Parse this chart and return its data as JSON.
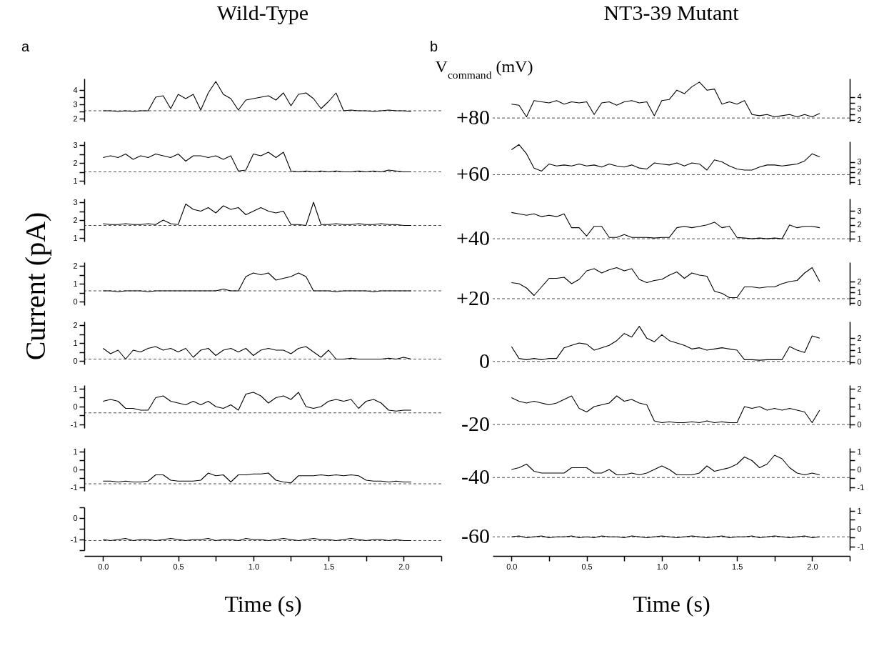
{
  "chart_data": [
    {
      "type": "line",
      "title": "Wild-Type",
      "annotations": [
        "a"
      ],
      "tick_labels": "y",
      "xlim": [
        -0.125,
        2.25
      ],
      "ylim": [
        1.8,
        4.8
      ],
      "yticks": [
        2,
        {
          "value": 2.5,
          "label": null
        },
        3,
        {
          "value": 3.5,
          "label": null
        },
        4
      ],
      "line_style": "solid",
      "ref_lines": [
        {
          "axis": "y",
          "value": 2.55,
          "color": "#000000",
          "line_style": "dashed"
        }
      ],
      "x": [
        0,
        0.05,
        0.1,
        0.15,
        0.2,
        0.25,
        0.3,
        0.35,
        0.4,
        0.45,
        0.5,
        0.55,
        0.6,
        0.65,
        0.7,
        0.75,
        0.8,
        0.85,
        0.9,
        0.95,
        1,
        1.05,
        1.1,
        1.15,
        1.2,
        1.25,
        1.3,
        1.35,
        1.4,
        1.45,
        1.5,
        1.55,
        1.6,
        1.65,
        1.7,
        1.75,
        1.8,
        1.85,
        1.9,
        1.95,
        2,
        2.05
      ],
      "series": [
        {
          "color": "#000000",
          "values": [
            2.55,
            2.55,
            2.5,
            2.55,
            2.5,
            2.55,
            2.55,
            3.5,
            3.6,
            2.7,
            3.7,
            3.4,
            3.7,
            2.6,
            3.8,
            4.6,
            3.7,
            3.4,
            2.6,
            3.3,
            3.4,
            3.5,
            3.6,
            3.3,
            3.8,
            2.9,
            3.7,
            3.8,
            3.4,
            2.7,
            3.2,
            3.8,
            2.55,
            2.6,
            2.55,
            2.55,
            2.5,
            2.55,
            2.6,
            2.55,
            2.55,
            2.5
          ]
        }
      ]
    },
    {
      "type": "line",
      "tick_labels": "y",
      "xlim": [
        -0.125,
        2.25
      ],
      "ylim": [
        0.8,
        3.2
      ],
      "yticks": [
        1,
        {
          "value": 1.5,
          "label": null
        },
        2,
        {
          "value": 2.5,
          "label": null
        },
        3
      ],
      "line_style": "solid",
      "ref_lines": [
        {
          "axis": "y",
          "value": 1.5,
          "color": "#000000",
          "line_style": "dashed"
        }
      ],
      "x": [
        0,
        0.05,
        0.1,
        0.15,
        0.2,
        0.25,
        0.3,
        0.35,
        0.4,
        0.45,
        0.5,
        0.55,
        0.6,
        0.65,
        0.7,
        0.75,
        0.8,
        0.85,
        0.9,
        0.95,
        1,
        1.05,
        1.1,
        1.15,
        1.2,
        1.25,
        1.3,
        1.35,
        1.4,
        1.45,
        1.5,
        1.55,
        1.6,
        1.65,
        1.7,
        1.75,
        1.8,
        1.85,
        1.9,
        1.95,
        2,
        2.05
      ],
      "series": [
        {
          "color": "#000000",
          "values": [
            2.3,
            2.4,
            2.3,
            2.5,
            2.2,
            2.4,
            2.3,
            2.5,
            2.4,
            2.3,
            2.5,
            2.1,
            2.4,
            2.4,
            2.3,
            2.4,
            2.2,
            2.4,
            1.55,
            1.6,
            2.5,
            2.4,
            2.6,
            2.3,
            2.6,
            1.55,
            1.5,
            1.55,
            1.5,
            1.55,
            1.5,
            1.55,
            1.5,
            1.5,
            1.55,
            1.5,
            1.55,
            1.5,
            1.6,
            1.55,
            1.5,
            1.5
          ]
        }
      ]
    },
    {
      "type": "line",
      "tick_labels": "y",
      "xlim": [
        -0.125,
        2.25
      ],
      "ylim": [
        0.8,
        3.2
      ],
      "yticks": [
        1,
        {
          "value": 1.5,
          "label": null
        },
        2,
        {
          "value": 2.5,
          "label": null
        },
        3
      ],
      "line_style": "solid",
      "ref_lines": [
        {
          "axis": "y",
          "value": 1.7,
          "color": "#000000",
          "line_style": "dashed"
        }
      ],
      "x": [
        0,
        0.05,
        0.1,
        0.15,
        0.2,
        0.25,
        0.3,
        0.35,
        0.4,
        0.45,
        0.5,
        0.55,
        0.6,
        0.65,
        0.7,
        0.75,
        0.8,
        0.85,
        0.9,
        0.95,
        1,
        1.05,
        1.1,
        1.15,
        1.2,
        1.25,
        1.3,
        1.35,
        1.4,
        1.45,
        1.5,
        1.55,
        1.6,
        1.65,
        1.7,
        1.75,
        1.8,
        1.85,
        1.9,
        1.95,
        2,
        2.05
      ],
      "series": [
        {
          "color": "#000000",
          "values": [
            1.8,
            1.75,
            1.75,
            1.8,
            1.75,
            1.75,
            1.8,
            1.75,
            2.0,
            1.8,
            1.75,
            2.9,
            2.6,
            2.5,
            2.7,
            2.4,
            2.8,
            2.6,
            2.7,
            2.3,
            2.5,
            2.7,
            2.5,
            2.4,
            2.5,
            1.75,
            1.75,
            1.7,
            3.0,
            1.75,
            1.75,
            1.8,
            1.75,
            1.75,
            1.8,
            1.75,
            1.75,
            1.8,
            1.75,
            1.75,
            1.7,
            1.7
          ]
        }
      ]
    },
    {
      "type": "line",
      "ylabel": "Current (pA)",
      "tick_labels": "y",
      "xlim": [
        -0.125,
        2.25
      ],
      "ylim": [
        -0.2,
        2.2
      ],
      "yticks": [
        0,
        {
          "value": 0.5,
          "label": null
        },
        1,
        {
          "value": 1.5,
          "label": null
        },
        2
      ],
      "line_style": "solid",
      "ref_lines": [
        {
          "axis": "y",
          "value": 0.6,
          "color": "#000000",
          "line_style": "dashed"
        }
      ],
      "x": [
        0,
        0.05,
        0.1,
        0.15,
        0.2,
        0.25,
        0.3,
        0.35,
        0.4,
        0.45,
        0.5,
        0.55,
        0.6,
        0.65,
        0.7,
        0.75,
        0.8,
        0.85,
        0.9,
        0.95,
        1,
        1.05,
        1.1,
        1.15,
        1.2,
        1.25,
        1.3,
        1.35,
        1.4,
        1.45,
        1.5,
        1.55,
        1.6,
        1.65,
        1.7,
        1.75,
        1.8,
        1.85,
        1.9,
        1.95,
        2,
        2.05
      ],
      "series": [
        {
          "color": "#000000",
          "values": [
            0.6,
            0.6,
            0.55,
            0.6,
            0.6,
            0.6,
            0.55,
            0.6,
            0.6,
            0.6,
            0.6,
            0.6,
            0.6,
            0.6,
            0.6,
            0.6,
            0.7,
            0.6,
            0.6,
            1.4,
            1.6,
            1.5,
            1.6,
            1.2,
            1.3,
            1.4,
            1.6,
            1.4,
            0.6,
            0.6,
            0.6,
            0.55,
            0.6,
            0.6,
            0.6,
            0.6,
            0.55,
            0.6,
            0.6,
            0.6,
            0.6,
            0.6
          ]
        }
      ]
    },
    {
      "type": "line",
      "tick_labels": "y",
      "xlim": [
        -0.125,
        2.25
      ],
      "ylim": [
        -0.2,
        2.2
      ],
      "yticks": [
        0,
        {
          "value": 0.5,
          "label": null
        },
        1,
        {
          "value": 1.5,
          "label": null
        },
        2
      ],
      "line_style": "solid",
      "ref_lines": [
        {
          "axis": "y",
          "value": 0.1,
          "color": "#000000",
          "line_style": "dashed"
        }
      ],
      "x": [
        0,
        0.05,
        0.1,
        0.15,
        0.2,
        0.25,
        0.3,
        0.35,
        0.4,
        0.45,
        0.5,
        0.55,
        0.6,
        0.65,
        0.7,
        0.75,
        0.8,
        0.85,
        0.9,
        0.95,
        1,
        1.05,
        1.1,
        1.15,
        1.2,
        1.25,
        1.3,
        1.35,
        1.4,
        1.45,
        1.5,
        1.55,
        1.6,
        1.65,
        1.7,
        1.75,
        1.8,
        1.85,
        1.9,
        1.95,
        2,
        2.05
      ],
      "series": [
        {
          "color": "#000000",
          "values": [
            0.7,
            0.4,
            0.6,
            0.1,
            0.6,
            0.5,
            0.7,
            0.8,
            0.6,
            0.7,
            0.5,
            0.7,
            0.2,
            0.6,
            0.7,
            0.3,
            0.6,
            0.7,
            0.5,
            0.7,
            0.3,
            0.6,
            0.7,
            0.6,
            0.6,
            0.4,
            0.7,
            0.8,
            0.5,
            0.2,
            0.6,
            0.1,
            0.1,
            0.15,
            0.1,
            0.1,
            0.1,
            0.1,
            0.15,
            0.1,
            0.2,
            0.1
          ]
        }
      ]
    },
    {
      "type": "line",
      "tick_labels": "y",
      "xlim": [
        -0.125,
        2.25
      ],
      "ylim": [
        -1.2,
        1.2
      ],
      "yticks": [
        -1,
        {
          "value": -0.5,
          "label": null
        },
        0,
        {
          "value": 0.5,
          "label": null
        },
        1
      ],
      "line_style": "solid",
      "ref_lines": [
        {
          "axis": "y",
          "value": -0.35,
          "color": "#000000",
          "line_style": "dashed"
        }
      ],
      "x": [
        0,
        0.05,
        0.1,
        0.15,
        0.2,
        0.25,
        0.3,
        0.35,
        0.4,
        0.45,
        0.5,
        0.55,
        0.6,
        0.65,
        0.7,
        0.75,
        0.8,
        0.85,
        0.9,
        0.95,
        1,
        1.05,
        1.1,
        1.15,
        1.2,
        1.25,
        1.3,
        1.35,
        1.4,
        1.45,
        1.5,
        1.55,
        1.6,
        1.65,
        1.7,
        1.75,
        1.8,
        1.85,
        1.9,
        1.95,
        2,
        2.05
      ],
      "series": [
        {
          "color": "#000000",
          "values": [
            0.3,
            0.4,
            0.3,
            -0.1,
            -0.1,
            -0.2,
            -0.2,
            0.5,
            0.6,
            0.3,
            0.2,
            0.1,
            0.3,
            0.1,
            0.3,
            0,
            -0.1,
            0.1,
            -0.2,
            0.7,
            0.8,
            0.6,
            0.2,
            0.5,
            0.6,
            0.4,
            0.8,
            0,
            -0.1,
            0,
            0.3,
            0.4,
            0.3,
            0.4,
            -0.1,
            0.3,
            0.4,
            0.2,
            -0.2,
            -0.25,
            -0.2,
            -0.2
          ]
        }
      ]
    },
    {
      "type": "line",
      "tick_labels": "y",
      "xlim": [
        -0.125,
        2.25
      ],
      "ylim": [
        -1.2,
        1.2
      ],
      "yticks": [
        -1,
        {
          "value": -0.5,
          "label": null
        },
        0,
        {
          "value": 0.5,
          "label": null
        },
        1
      ],
      "line_style": "solid",
      "ref_lines": [
        {
          "axis": "y",
          "value": -0.8,
          "color": "#000000",
          "line_style": "dashed"
        }
      ],
      "x": [
        0,
        0.05,
        0.1,
        0.15,
        0.2,
        0.25,
        0.3,
        0.35,
        0.4,
        0.45,
        0.5,
        0.55,
        0.6,
        0.65,
        0.7,
        0.75,
        0.8,
        0.85,
        0.9,
        0.95,
        1,
        1.05,
        1.1,
        1.15,
        1.2,
        1.25,
        1.3,
        1.35,
        1.4,
        1.45,
        1.5,
        1.55,
        1.6,
        1.65,
        1.7,
        1.75,
        1.8,
        1.85,
        1.9,
        1.95,
        2,
        2.05
      ],
      "series": [
        {
          "color": "#000000",
          "values": [
            -0.65,
            -0.65,
            -0.7,
            -0.65,
            -0.7,
            -0.7,
            -0.65,
            -0.3,
            -0.3,
            -0.6,
            -0.65,
            -0.65,
            -0.65,
            -0.6,
            -0.2,
            -0.35,
            -0.3,
            -0.7,
            -0.3,
            -0.3,
            -0.25,
            -0.25,
            -0.2,
            -0.6,
            -0.7,
            -0.75,
            -0.35,
            -0.35,
            -0.35,
            -0.3,
            -0.35,
            -0.3,
            -0.35,
            -0.3,
            -0.35,
            -0.6,
            -0.65,
            -0.65,
            -0.7,
            -0.65,
            -0.7,
            -0.7
          ]
        }
      ]
    },
    {
      "type": "line",
      "xlabel": "Time (s)",
      "xlim": [
        -0.125,
        2.25
      ],
      "xticks": [
        {
          "value": 0,
          "label": "0.0"
        },
        {
          "value": 0.25,
          "label": null
        },
        {
          "value": 0.5,
          "label": "0.5"
        },
        {
          "value": 0.75,
          "label": null
        },
        {
          "value": 1,
          "label": "1.0"
        },
        {
          "value": 1.25,
          "label": null
        },
        {
          "value": 1.5,
          "label": "1.5"
        },
        {
          "value": 1.75,
          "label": null
        },
        {
          "value": 2,
          "label": "2.0"
        },
        {
          "value": 2.25,
          "label": null
        }
      ],
      "ylim": [
        -1.5,
        0.5
      ],
      "yticks": [
        {
          "value": -1.5,
          "label": null
        },
        -1,
        {
          "value": -0.5,
          "label": null
        },
        0,
        {
          "value": 0.5,
          "label": null
        }
      ],
      "line_style": "solid",
      "ref_lines": [
        {
          "axis": "y",
          "value": -1.05,
          "color": "#000000",
          "line_style": "dashed"
        }
      ],
      "x": [
        0,
        0.05,
        0.1,
        0.15,
        0.2,
        0.25,
        0.3,
        0.35,
        0.4,
        0.45,
        0.5,
        0.55,
        0.6,
        0.65,
        0.7,
        0.75,
        0.8,
        0.85,
        0.9,
        0.95,
        1,
        1.05,
        1.1,
        1.15,
        1.2,
        1.25,
        1.3,
        1.35,
        1.4,
        1.45,
        1.5,
        1.55,
        1.6,
        1.65,
        1.7,
        1.75,
        1.8,
        1.85,
        1.9,
        1.95,
        2,
        2.05
      ],
      "series": [
        {
          "color": "#000000",
          "values": [
            -1,
            -1.05,
            -1,
            -0.95,
            -1.05,
            -1,
            -1,
            -1.05,
            -1,
            -0.95,
            -1,
            -1.05,
            -1,
            -1,
            -0.95,
            -1.05,
            -1,
            -1,
            -1.05,
            -0.95,
            -1,
            -1,
            -1.05,
            -1,
            -0.95,
            -1,
            -1.05,
            -1,
            -0.95,
            -1,
            -1,
            -1.05,
            -1,
            -0.95,
            -1,
            -1.05,
            -1,
            -1,
            -1.05,
            -1,
            -1.05,
            -1.05
          ]
        }
      ]
    },
    {
      "type": "line",
      "title": "NT3-39 Mutant",
      "annotations": [
        "b",
        "V$_{command}$ (mV)",
        "+80"
      ],
      "tick_labels": "y",
      "xlim": [
        -0.125,
        2.25
      ],
      "y2lim": [
        1.9,
        5.6
      ],
      "y2ticks": [
        2,
        {
          "value": 2.5,
          "label": null
        },
        3,
        {
          "value": 3.5,
          "label": null
        },
        4
      ],
      "line_style": "solid",
      "ref_lines": [
        {
          "axis": "y2",
          "value": 2.2,
          "color": "#000000",
          "line_style": "dashed"
        }
      ],
      "x": [
        0,
        0.05,
        0.1,
        0.15,
        0.2,
        0.25,
        0.3,
        0.35,
        0.4,
        0.45,
        0.5,
        0.55,
        0.6,
        0.65,
        0.7,
        0.75,
        0.8,
        0.85,
        0.9,
        0.95,
        1,
        1.05,
        1.1,
        1.15,
        1.2,
        1.25,
        1.3,
        1.35,
        1.4,
        1.45,
        1.5,
        1.55,
        1.6,
        1.65,
        1.7,
        1.75,
        1.8,
        1.85,
        1.9,
        1.95,
        2,
        2.05
      ],
      "series": [
        {
          "color": "#000000",
          "axis": "y2",
          "values": [
            3.4,
            3.3,
            2.3,
            3.7,
            3.6,
            3.5,
            3.7,
            3.4,
            3.6,
            3.5,
            3.6,
            2.5,
            3.5,
            3.6,
            3.3,
            3.6,
            3.7,
            3.5,
            3.6,
            2.4,
            3.7,
            3.8,
            4.6,
            4.3,
            4.9,
            5.3,
            4.6,
            4.7,
            3.4,
            3.6,
            3.4,
            3.7,
            2.5,
            2.4,
            2.5,
            2.3,
            2.4,
            2.5,
            2.3,
            2.5,
            2.3,
            2.6
          ]
        }
      ]
    },
    {
      "type": "line",
      "annotations": [
        "+60"
      ],
      "tick_labels": "y",
      "xlim": [
        -0.125,
        2.25
      ],
      "y2lim": [
        0.8,
        5.0
      ],
      "y2ticks": [
        1,
        {
          "value": 1.5,
          "label": null
        },
        2,
        {
          "value": 2.5,
          "label": null
        },
        3
      ],
      "line_style": "solid",
      "ref_lines": [
        {
          "axis": "y2",
          "value": 1.75,
          "color": "#000000",
          "line_style": "dashed"
        }
      ],
      "x": [
        0,
        0.05,
        0.1,
        0.15,
        0.2,
        0.25,
        0.3,
        0.35,
        0.4,
        0.45,
        0.5,
        0.55,
        0.6,
        0.65,
        0.7,
        0.75,
        0.8,
        0.85,
        0.9,
        0.95,
        1,
        1.05,
        1.1,
        1.15,
        1.2,
        1.25,
        1.3,
        1.35,
        1.4,
        1.45,
        1.5,
        1.55,
        1.6,
        1.65,
        1.7,
        1.75,
        1.8,
        1.85,
        1.9,
        1.95,
        2,
        2.05
      ],
      "series": [
        {
          "color": "#000000",
          "axis": "y2",
          "values": [
            4.2,
            4.7,
            3.8,
            2.4,
            2.1,
            2.8,
            2.6,
            2.7,
            2.6,
            2.8,
            2.6,
            2.7,
            2.5,
            2.8,
            2.6,
            2.5,
            2.7,
            2.4,
            2.3,
            2.9,
            2.8,
            2.7,
            2.9,
            2.6,
            2.9,
            2.8,
            2.2,
            3.2,
            3.0,
            2.6,
            2.3,
            2.2,
            2.2,
            2.5,
            2.7,
            2.7,
            2.6,
            2.7,
            2.8,
            3.1,
            3.8,
            3.5
          ]
        }
      ]
    },
    {
      "type": "line",
      "annotations": [
        "+40"
      ],
      "tick_labels": "y",
      "xlim": [
        -0.125,
        2.25
      ],
      "y2lim": [
        0.8,
        3.9
      ],
      "y2ticks": [
        1,
        {
          "value": 1.5,
          "label": null
        },
        2,
        {
          "value": 2.5,
          "label": null
        },
        3
      ],
      "line_style": "solid",
      "ref_lines": [
        {
          "axis": "y2",
          "value": 1.0,
          "color": "#000000",
          "line_style": "dashed"
        }
      ],
      "x": [
        0,
        0.05,
        0.1,
        0.15,
        0.2,
        0.25,
        0.3,
        0.35,
        0.4,
        0.45,
        0.5,
        0.55,
        0.6,
        0.65,
        0.7,
        0.75,
        0.8,
        0.85,
        0.9,
        0.95,
        1,
        1.05,
        1.1,
        1.15,
        1.2,
        1.25,
        1.3,
        1.35,
        1.4,
        1.45,
        1.5,
        1.55,
        1.6,
        1.65,
        1.7,
        1.75,
        1.8,
        1.85,
        1.9,
        1.95,
        2,
        2.05
      ],
      "series": [
        {
          "color": "#000000",
          "axis": "y2",
          "values": [
            2.9,
            2.8,
            2.7,
            2.8,
            2.6,
            2.7,
            2.6,
            2.8,
            1.8,
            1.8,
            1.2,
            1.9,
            1.9,
            1.1,
            1.1,
            1.3,
            1.1,
            1.1,
            1.1,
            1.05,
            1.1,
            1.1,
            1.8,
            1.9,
            1.8,
            1.9,
            2.0,
            2.2,
            1.8,
            1.9,
            1.1,
            1.05,
            1.0,
            1.05,
            1.0,
            1.05,
            1.0,
            2.0,
            1.8,
            1.9,
            1.9,
            1.8
          ]
        }
      ]
    },
    {
      "type": "line",
      "annotations": [
        "+20"
      ],
      "tick_labels": "y",
      "xlim": [
        -0.125,
        2.25
      ],
      "y2lim": [
        -0.2,
        3.8
      ],
      "y2ticks": [
        0,
        {
          "value": 0.5,
          "label": null
        },
        1,
        {
          "value": 1.5,
          "label": null
        },
        2
      ],
      "line_style": "solid",
      "ref_lines": [
        {
          "axis": "y2",
          "value": 0.4,
          "color": "#000000",
          "line_style": "dashed"
        }
      ],
      "x": [
        0,
        0.05,
        0.1,
        0.15,
        0.2,
        0.25,
        0.3,
        0.35,
        0.4,
        0.45,
        0.5,
        0.55,
        0.6,
        0.65,
        0.7,
        0.75,
        0.8,
        0.85,
        0.9,
        0.95,
        1,
        1.05,
        1.1,
        1.15,
        1.2,
        1.25,
        1.3,
        1.35,
        1.4,
        1.45,
        1.5,
        1.55,
        1.6,
        1.65,
        1.7,
        1.75,
        1.8,
        1.85,
        1.9,
        1.95,
        2,
        2.05
      ],
      "series": [
        {
          "color": "#000000",
          "axis": "y2",
          "values": [
            1.9,
            1.8,
            1.4,
            0.7,
            1.5,
            2.3,
            2.3,
            2.4,
            1.8,
            2.2,
            3.0,
            3.2,
            2.8,
            3.1,
            3.3,
            3.0,
            3.2,
            2.2,
            1.9,
            2.1,
            2.2,
            2.6,
            2.9,
            2.3,
            2.8,
            2.6,
            2.5,
            1.1,
            0.9,
            0.5,
            0.5,
            1.5,
            1.5,
            1.4,
            1.5,
            1.5,
            1.8,
            2.0,
            2.1,
            2.8,
            3.3,
            2.0
          ]
        }
      ]
    },
    {
      "type": "line",
      "annotations": [
        "0"
      ],
      "tick_labels": "y",
      "xlim": [
        -0.125,
        2.25
      ],
      "y2lim": [
        -0.2,
        3.4
      ],
      "y2ticks": [
        0,
        {
          "value": 0.5,
          "label": null
        },
        1,
        {
          "value": 1.5,
          "label": null
        },
        2
      ],
      "line_style": "solid",
      "ref_lines": [
        {
          "axis": "y2",
          "value": 0.05,
          "color": "#000000",
          "line_style": "dashed"
        }
      ],
      "x": [
        0,
        0.05,
        0.1,
        0.15,
        0.2,
        0.25,
        0.3,
        0.35,
        0.4,
        0.45,
        0.5,
        0.55,
        0.6,
        0.65,
        0.7,
        0.75,
        0.8,
        0.85,
        0.9,
        0.95,
        1,
        1.05,
        1.1,
        1.15,
        1.2,
        1.25,
        1.3,
        1.35,
        1.4,
        1.45,
        1.5,
        1.55,
        1.6,
        1.65,
        1.7,
        1.75,
        1.8,
        1.85,
        1.9,
        1.95,
        2,
        2.05
      ],
      "series": [
        {
          "color": "#000000",
          "axis": "y2",
          "values": [
            1.3,
            0.3,
            0.2,
            0.3,
            0.2,
            0.3,
            0.3,
            1.2,
            1.4,
            1.6,
            1.5,
            1.0,
            1.2,
            1.4,
            1.8,
            2.4,
            2.1,
            3.0,
            2.0,
            1.7,
            2.3,
            1.8,
            1.6,
            1.4,
            1.1,
            1.2,
            1.0,
            1.1,
            1.2,
            1.1,
            1.0,
            0.2,
            0.2,
            0.15,
            0.2,
            0.2,
            0.2,
            1.3,
            1.0,
            0.8,
            2.2,
            2.0
          ]
        }
      ]
    },
    {
      "type": "line",
      "annotations": [
        "-20"
      ],
      "tick_labels": "y",
      "xlim": [
        -0.125,
        2.25
      ],
      "y2lim": [
        -0.2,
        2.2
      ],
      "y2ticks": [
        0,
        {
          "value": 0.5,
          "label": null
        },
        1,
        {
          "value": 1.5,
          "label": null
        },
        2
      ],
      "line_style": "solid",
      "ref_lines": [
        {
          "axis": "y2",
          "value": 0.0,
          "color": "#000000",
          "line_style": "dashed"
        }
      ],
      "x": [
        0,
        0.05,
        0.1,
        0.15,
        0.2,
        0.25,
        0.3,
        0.35,
        0.4,
        0.45,
        0.5,
        0.55,
        0.6,
        0.65,
        0.7,
        0.75,
        0.8,
        0.85,
        0.9,
        0.95,
        1,
        1.05,
        1.1,
        1.15,
        1.2,
        1.25,
        1.3,
        1.35,
        1.4,
        1.45,
        1.5,
        1.55,
        1.6,
        1.65,
        1.7,
        1.75,
        1.8,
        1.85,
        1.9,
        1.95,
        2,
        2.05
      ],
      "series": [
        {
          "color": "#000000",
          "axis": "y2",
          "values": [
            1.5,
            1.3,
            1.2,
            1.3,
            1.2,
            1.1,
            1.2,
            1.4,
            1.6,
            0.9,
            0.7,
            1.0,
            1.1,
            1.2,
            1.6,
            1.3,
            1.4,
            1.2,
            1.1,
            0.2,
            0.1,
            0.15,
            0.1,
            0.1,
            0.15,
            0.1,
            0.2,
            0.1,
            0.15,
            0.1,
            0.1,
            1.0,
            0.9,
            1.0,
            0.8,
            0.9,
            0.8,
            0.9,
            0.8,
            0.7,
            0.1,
            0.8
          ]
        }
      ]
    },
    {
      "type": "line",
      "annotations": [
        "-40"
      ],
      "tick_labels": "y",
      "xlim": [
        -0.125,
        2.25
      ],
      "y2lim": [
        -1.2,
        1.2
      ],
      "y2ticks": [
        -1,
        {
          "value": -0.5,
          "label": null
        },
        0,
        {
          "value": 0.5,
          "label": null
        },
        1
      ],
      "line_style": "solid",
      "ref_lines": [
        {
          "axis": "y2",
          "value": -0.45,
          "color": "#000000",
          "line_style": "dashed"
        }
      ],
      "x": [
        0,
        0.05,
        0.1,
        0.15,
        0.2,
        0.25,
        0.3,
        0.35,
        0.4,
        0.45,
        0.5,
        0.55,
        0.6,
        0.65,
        0.7,
        0.75,
        0.8,
        0.85,
        0.9,
        0.95,
        1,
        1.05,
        1.1,
        1.15,
        1.2,
        1.25,
        1.3,
        1.35,
        1.4,
        1.45,
        1.5,
        1.55,
        1.6,
        1.65,
        1.7,
        1.75,
        1.8,
        1.85,
        1.9,
        1.95,
        2,
        2.05
      ],
      "series": [
        {
          "color": "#000000",
          "axis": "y2",
          "values": [
            0.0,
            0.1,
            0.3,
            -0.1,
            -0.2,
            -0.2,
            -0.2,
            -0.2,
            0.1,
            0.1,
            0.1,
            -0.2,
            -0.2,
            0.0,
            -0.3,
            -0.3,
            -0.2,
            -0.3,
            -0.2,
            0.0,
            0.2,
            0.0,
            -0.3,
            -0.3,
            -0.3,
            -0.2,
            0.2,
            -0.1,
            0.0,
            0.1,
            0.3,
            0.7,
            0.5,
            0.1,
            0.3,
            0.8,
            0.6,
            0.1,
            -0.2,
            -0.3,
            -0.2,
            -0.3
          ]
        }
      ]
    },
    {
      "type": "line",
      "annotations": [
        "-60"
      ],
      "xlabel": "Time (s)",
      "xlim": [
        -0.125,
        2.25
      ],
      "xticks": [
        {
          "value": 0,
          "label": "0.0"
        },
        {
          "value": 0.25,
          "label": null
        },
        {
          "value": 0.5,
          "label": "0.5"
        },
        {
          "value": 0.75,
          "label": null
        },
        {
          "value": 1,
          "label": "1.0"
        },
        {
          "value": 1.25,
          "label": null
        },
        {
          "value": 1.5,
          "label": "1.5"
        },
        {
          "value": 1.75,
          "label": null
        },
        {
          "value": 2,
          "label": "2.0"
        },
        {
          "value": 2.25,
          "label": null
        }
      ],
      "y2lim": [
        -1.2,
        1.2
      ],
      "y2ticks": [
        -1,
        {
          "value": -0.5,
          "label": null
        },
        0,
        {
          "value": 0.5,
          "label": null
        },
        1
      ],
      "line_style": "solid",
      "ref_lines": [
        {
          "axis": "y2",
          "value": -0.45,
          "color": "#000000",
          "line_style": "dashed"
        }
      ],
      "x": [
        0,
        0.05,
        0.1,
        0.15,
        0.2,
        0.25,
        0.3,
        0.35,
        0.4,
        0.45,
        0.5,
        0.55,
        0.6,
        0.65,
        0.7,
        0.75,
        0.8,
        0.85,
        0.9,
        0.95,
        1,
        1.05,
        1.1,
        1.15,
        1.2,
        1.25,
        1.3,
        1.35,
        1.4,
        1.45,
        1.5,
        1.55,
        1.6,
        1.65,
        1.7,
        1.75,
        1.8,
        1.85,
        1.9,
        1.95,
        2,
        2.05
      ],
      "series": [
        {
          "color": "#000000",
          "axis": "y2",
          "values": [
            -0.45,
            -0.4,
            -0.5,
            -0.45,
            -0.4,
            -0.5,
            -0.45,
            -0.45,
            -0.4,
            -0.5,
            -0.45,
            -0.5,
            -0.4,
            -0.45,
            -0.45,
            -0.5,
            -0.4,
            -0.45,
            -0.5,
            -0.45,
            -0.4,
            -0.45,
            -0.5,
            -0.45,
            -0.4,
            -0.45,
            -0.5,
            -0.45,
            -0.4,
            -0.5,
            -0.45,
            -0.45,
            -0.4,
            -0.5,
            -0.45,
            -0.4,
            -0.45,
            -0.5,
            -0.45,
            -0.4,
            -0.5,
            -0.45
          ]
        }
      ]
    }
  ]
}
